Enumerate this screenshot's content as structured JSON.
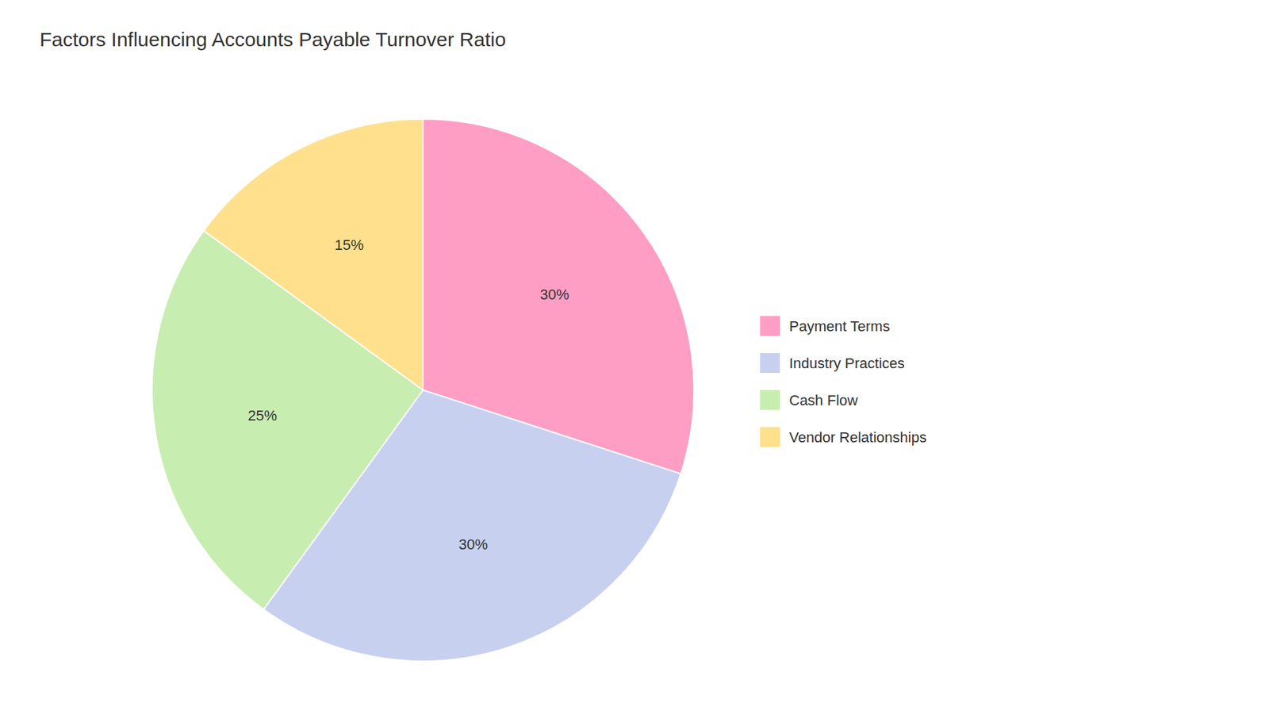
{
  "chart_data": {
    "type": "pie",
    "title": "Factors Influencing Accounts Payable Turnover Ratio",
    "categories": [
      "Payment Terms",
      "Industry Practices",
      "Cash Flow",
      "Vendor Relationships"
    ],
    "values": [
      30,
      30,
      25,
      15
    ],
    "value_labels": [
      "30%",
      "30%",
      "25%",
      "15%"
    ],
    "colors": [
      "#FF9EC4",
      "#C8D0F0",
      "#C8EDB0",
      "#FFE08C"
    ],
    "data_labels": true,
    "legend": "right"
  }
}
